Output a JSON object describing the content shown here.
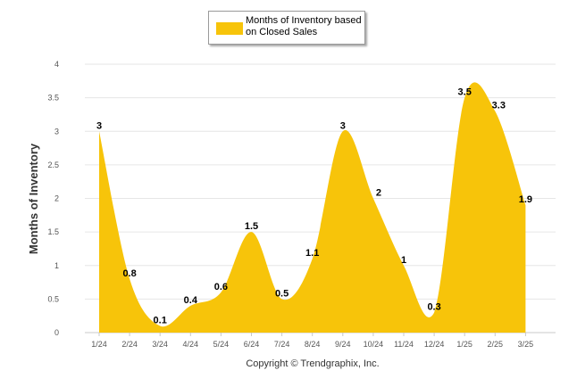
{
  "chart_data": {
    "type": "area",
    "series": [
      {
        "name": "Months of Inventory based on Closed Sales",
        "values": [
          3,
          0.8,
          0.1,
          0.4,
          0.6,
          1.5,
          0.5,
          1.1,
          3,
          2,
          1,
          0.3,
          3.5,
          3.3,
          1.9
        ]
      }
    ],
    "categories": [
      "1/24",
      "2/24",
      "3/24",
      "4/24",
      "5/24",
      "6/24",
      "7/24",
      "8/24",
      "9/24",
      "10/24",
      "11/24",
      "12/24",
      "1/25",
      "2/25",
      "3/25"
    ],
    "data_labels": [
      "3",
      "0.8",
      "0.1",
      "0.4",
      "0.6",
      "1.5",
      "0.5",
      "1.1",
      "3",
      "2",
      "1",
      "0.3",
      "3.5",
      "3.3",
      "1.9"
    ],
    "ylabel": "Months of Inventory",
    "xlabel": "",
    "ylim": [
      0,
      4
    ],
    "yticks": [
      "0",
      "0.5",
      "1",
      "1.5",
      "2",
      "2.5",
      "3",
      "3.5",
      "4"
    ],
    "grid": true,
    "legend_position": "top-center",
    "fill_color": "#F7C40A",
    "grid_color": "#e6e6e6"
  },
  "legend": {
    "label": "Months of Inventory based on Closed Sales"
  },
  "footer": {
    "copyright": "Copyright © Trendgraphix, Inc."
  }
}
